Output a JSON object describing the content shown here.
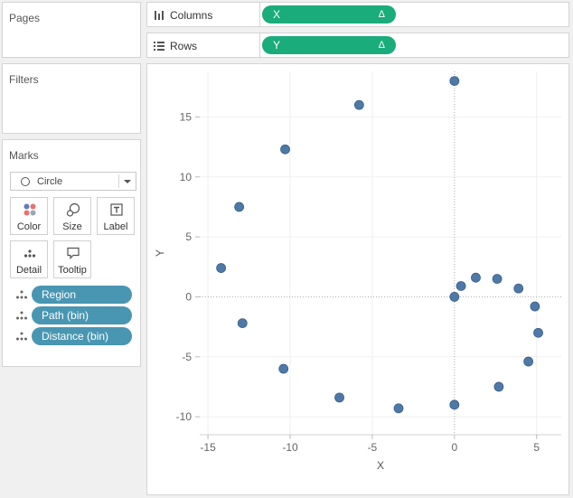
{
  "left_panels": {
    "pages_title": "Pages",
    "filters_title": "Filters",
    "marks_title": "Marks"
  },
  "marks": {
    "mark_type": "Circle",
    "buttons": {
      "color": "Color",
      "size": "Size",
      "label": "Label",
      "detail": "Detail",
      "tooltip": "Tooltip"
    },
    "fields": [
      "Region",
      "Path (bin)",
      "Distance (bin)"
    ]
  },
  "shelves": {
    "columns_label": "Columns",
    "columns_pill": "X",
    "rows_label": "Rows",
    "rows_pill": "Y",
    "delta_glyph": "Δ"
  },
  "colors": {
    "mark": "#4e79a7",
    "pill_green": "#1aac7a",
    "pill_blue": "#4996b2"
  },
  "icons": {
    "columns": "columns-icon",
    "rows": "rows-icon",
    "mark_type": "circle-icon",
    "detail_field": "detail-dots-icon"
  },
  "chart_data": {
    "type": "scatter",
    "xlabel": "X",
    "ylabel": "Y",
    "xlim": [
      -15.5,
      6.5
    ],
    "ylim": [
      -11.5,
      18.8
    ],
    "xticks": [
      -15,
      -10,
      -5,
      0,
      5
    ],
    "yticks": [
      -10,
      -5,
      0,
      5,
      10,
      15
    ],
    "grid": true,
    "zero_lines": true,
    "points": [
      {
        "x": 0.0,
        "y": 18.0
      },
      {
        "x": -5.8,
        "y": 16.0
      },
      {
        "x": -10.3,
        "y": 12.3
      },
      {
        "x": -13.1,
        "y": 7.5
      },
      {
        "x": -14.2,
        "y": 2.4
      },
      {
        "x": -12.9,
        "y": -2.2
      },
      {
        "x": -10.4,
        "y": -6.0
      },
      {
        "x": -7.0,
        "y": -8.4
      },
      {
        "x": -3.4,
        "y": -9.3
      },
      {
        "x": 0.0,
        "y": -9.0
      },
      {
        "x": 2.7,
        "y": -7.5
      },
      {
        "x": 4.5,
        "y": -5.4
      },
      {
        "x": 5.1,
        "y": -3.0
      },
      {
        "x": 4.9,
        "y": -0.8
      },
      {
        "x": 3.9,
        "y": 0.7
      },
      {
        "x": 2.6,
        "y": 1.5
      },
      {
        "x": 1.3,
        "y": 1.6
      },
      {
        "x": 0.4,
        "y": 0.9
      },
      {
        "x": 0.0,
        "y": 0.0
      }
    ]
  }
}
